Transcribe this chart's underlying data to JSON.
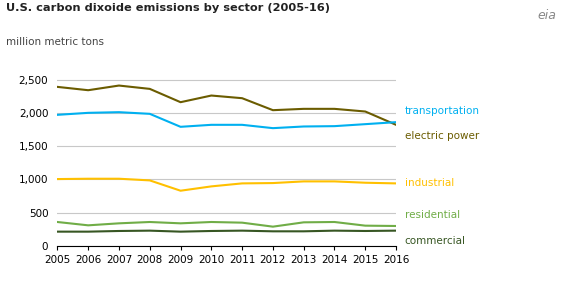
{
  "title": "U.S. carbon dixoide emissions by sector (2005-16)",
  "subtitle": "million metric tons",
  "years": [
    2005,
    2006,
    2007,
    2008,
    2009,
    2010,
    2011,
    2012,
    2013,
    2014,
    2015,
    2016
  ],
  "transportation": [
    1970,
    2000,
    2010,
    1985,
    1790,
    1820,
    1820,
    1770,
    1795,
    1800,
    1830,
    1860
  ],
  "electric_power": [
    2390,
    2340,
    2410,
    2360,
    2160,
    2260,
    2220,
    2040,
    2060,
    2060,
    2020,
    1820
  ],
  "industrial": [
    1005,
    1010,
    1010,
    985,
    830,
    895,
    940,
    945,
    970,
    970,
    950,
    940
  ],
  "residential": [
    360,
    310,
    340,
    360,
    340,
    360,
    350,
    290,
    355,
    360,
    305,
    300
  ],
  "commercial": [
    215,
    215,
    225,
    230,
    215,
    225,
    230,
    220,
    220,
    230,
    225,
    230
  ],
  "colors": {
    "transportation": "#00b0f0",
    "electric_power": "#6b5c00",
    "industrial": "#ffc000",
    "residential": "#70ad47",
    "commercial": "#375623"
  },
  "ylim": [
    0,
    2750
  ],
  "yticks": [
    0,
    500,
    1000,
    1500,
    2000,
    2500
  ],
  "ytick_labels": [
    "0",
    "500",
    "1,000",
    "1,500",
    "2,000",
    "2,500"
  ],
  "background_color": "#ffffff",
  "grid_color": "#c8c8c8",
  "label_offsets": {
    "transportation": 8,
    "electric_power": -8,
    "industrial": 0,
    "residential": 6,
    "commercial": -6
  }
}
